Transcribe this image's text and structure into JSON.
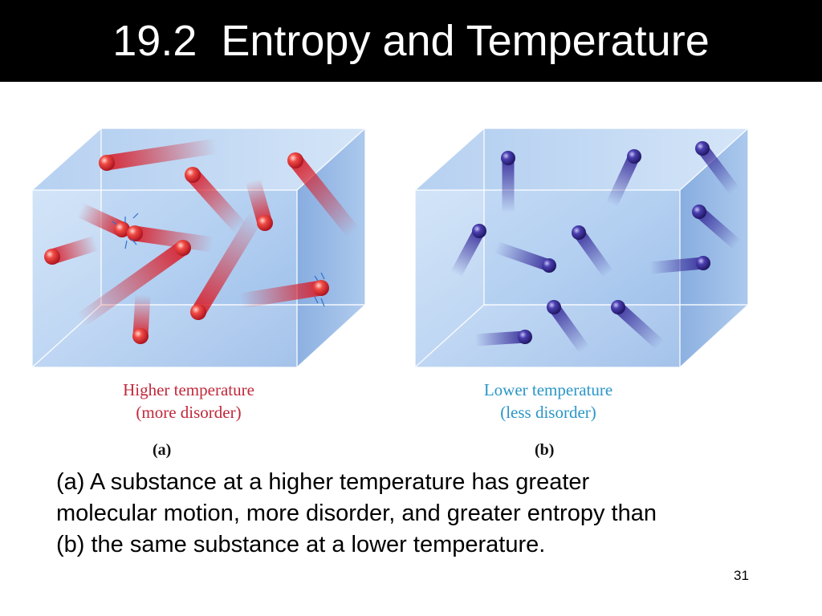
{
  "slide": {
    "title": "19.2  Entropy and Temperature",
    "figure": {
      "caption_a": [
        "Higher temperature",
        "(more disorder)"
      ],
      "caption_b": [
        "Lower temperature",
        "(less disorder)"
      ],
      "panel_a": "(a)",
      "panel_b": "(b)",
      "colors": {
        "hot_molecule": "#d8232f",
        "cold_molecule": "#3a2f9c",
        "box": "#9cc0e8"
      }
    },
    "body_lines": [
      "(a) A substance at a higher temperature has greater",
      "molecular motion, more disorder, and greater entropy than",
      "(b) the same substance at a lower temperature."
    ],
    "page_number": "31"
  }
}
